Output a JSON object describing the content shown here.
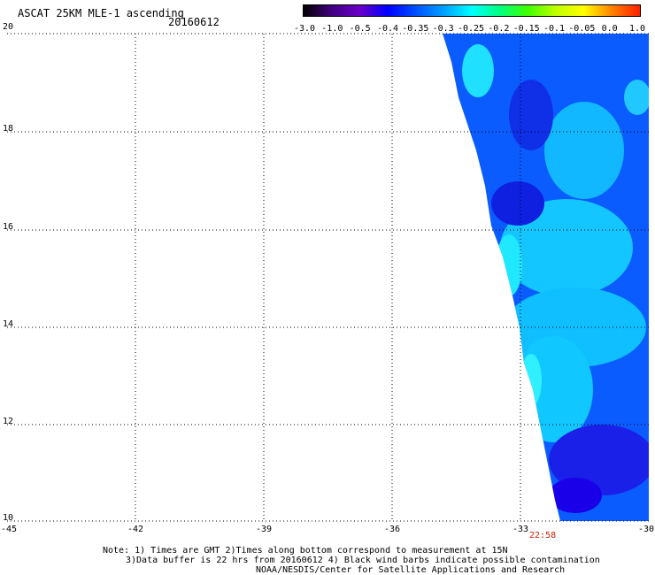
{
  "title": "ASCAT 25KM MLE-1 ascending",
  "date": "20160612",
  "colorbar": {
    "labels": [
      "-3.0",
      "-1.0",
      "-0.5",
      "-0.4",
      "-0.35",
      "-0.3",
      "-0.25",
      "-0.2",
      "-0.15",
      "-0.1",
      "-0.05",
      "0.0",
      "1.0"
    ],
    "colors": [
      "#000000",
      "#40007f",
      "#6a00c8",
      "#0000ff",
      "#0050ff",
      "#00a0ff",
      "#00ffff",
      "#00ff80",
      "#40ff00",
      "#c0ff00",
      "#ffff00",
      "#ff8000",
      "#ff2000"
    ]
  },
  "map": {
    "lon_range": [
      -45,
      -30
    ],
    "lat_range": [
      10,
      20
    ],
    "x_ticks": [
      "-45",
      "-42",
      "-39",
      "-36",
      "-33",
      "-30"
    ],
    "y_ticks": [
      "20",
      "18",
      "16",
      "14",
      "12",
      "10"
    ],
    "swath_time": "22:58"
  },
  "notes": {
    "line1": "Note: 1) Times are GMT 2)Times along bottom correspond to measurement at 15N",
    "line2": "3)Data buffer is 22 hrs from 20160612 4) Black wind barbs indicate possible contamination",
    "line3": "NOAA/NESDIS/Center for Satellite Applications and Research"
  }
}
